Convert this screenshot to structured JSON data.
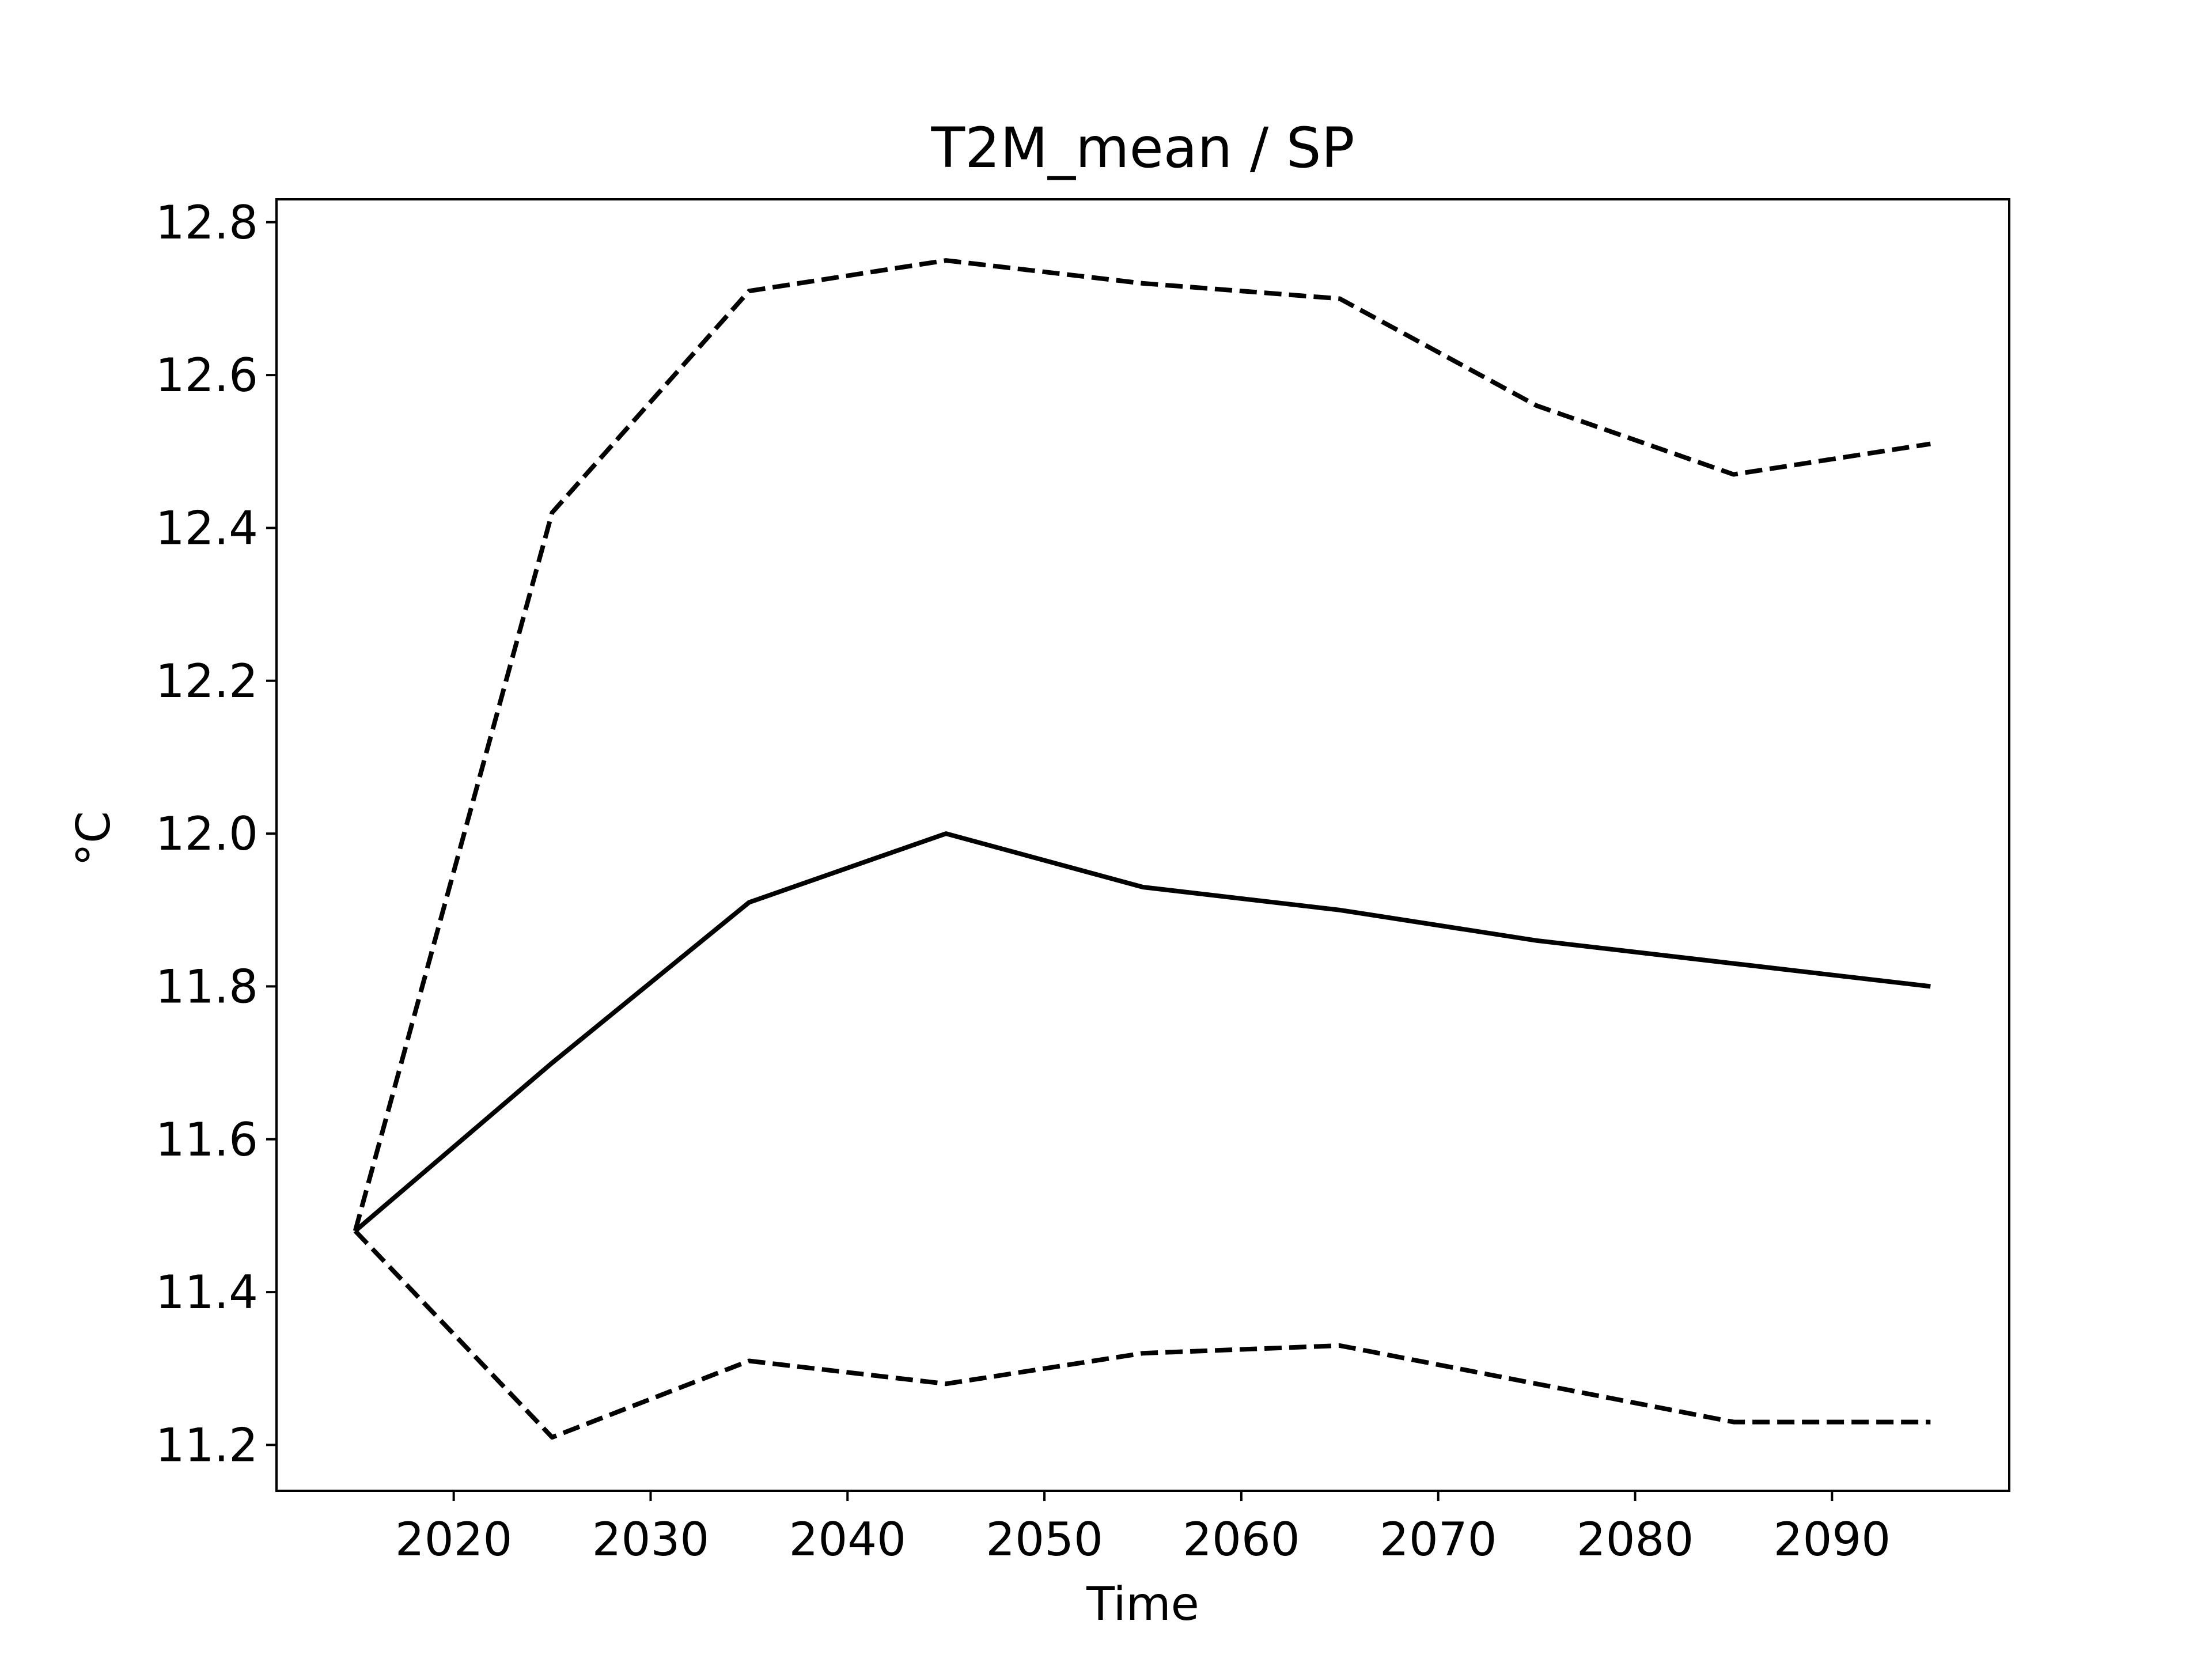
{
  "chart_data": {
    "type": "line",
    "title": "T2M_mean / SP",
    "xlabel": "Time",
    "ylabel": "°C",
    "xlim": [
      2011,
      2099
    ],
    "ylim": [
      11.14,
      12.83
    ],
    "x_ticks": [
      2020,
      2030,
      2040,
      2050,
      2060,
      2070,
      2080,
      2090
    ],
    "y_ticks": [
      11.2,
      11.4,
      11.6,
      11.8,
      12.0,
      12.2,
      12.4,
      12.6,
      12.8
    ],
    "y_tick_labels": [
      "11.2",
      "11.4",
      "11.6",
      "11.8",
      "12.0",
      "12.2",
      "12.4",
      "12.6",
      "12.8"
    ],
    "grid": false,
    "x": [
      2015,
      2025,
      2035,
      2045,
      2055,
      2065,
      2075,
      2085,
      2095
    ],
    "series": [
      {
        "style": "dashed",
        "color": "#000000",
        "values": [
          11.48,
          12.42,
          12.71,
          12.75,
          12.72,
          12.7,
          12.56,
          12.47,
          12.51
        ]
      },
      {
        "style": "solid",
        "color": "#000000",
        "values": [
          11.48,
          11.7,
          11.91,
          12.0,
          11.93,
          11.9,
          11.86,
          11.83,
          11.8
        ]
      },
      {
        "style": "dashed",
        "color": "#000000",
        "values": [
          11.48,
          11.21,
          11.31,
          11.28,
          11.32,
          11.33,
          11.28,
          11.23,
          11.23
        ]
      }
    ]
  }
}
